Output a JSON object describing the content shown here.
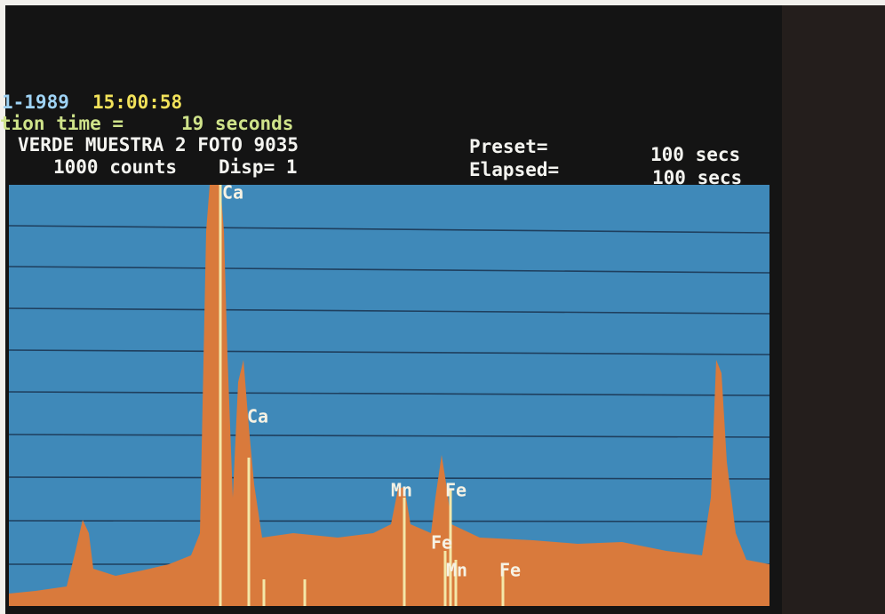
{
  "header": {
    "date": "1-1989",
    "time": "15:00:58",
    "acquisition_label": "tion time =",
    "acquisition_value": "19 seconds",
    "sample": "VERDE MUESTRA 2 FOTO 9035",
    "scale": "1000 counts",
    "display": "Disp= 1",
    "preset_label": "Preset=",
    "preset_value": "100 secs",
    "elapsed_label": "Elapsed=",
    "elapsed_value": "100 secs"
  },
  "peaks": [
    "Ca",
    "Ca",
    "Mn",
    "Fe",
    "Fe",
    "Mn",
    "Fe"
  ]
}
